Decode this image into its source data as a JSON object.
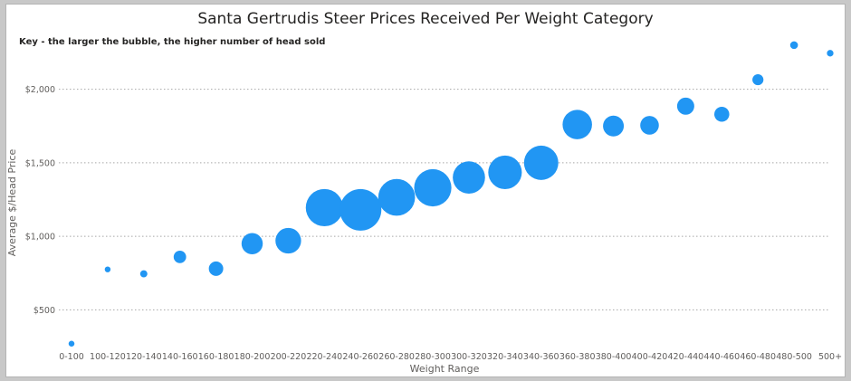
{
  "chart_data": {
    "type": "bubble",
    "title": "Santa Gertrudis Steer Prices Received Per Weight Category",
    "subtitle": "Key - the larger the bubble, the higher number of head sold",
    "xlabel": "Weight Range",
    "ylabel": "Average $/Head Price",
    "ylim": [
      250,
      2330
    ],
    "yticks": [
      500,
      1000,
      1500,
      2000
    ],
    "ytick_labels": [
      "$500",
      "$1,000",
      "$1,500",
      "$2,000"
    ],
    "grid": true,
    "color": "#2196F3",
    "categories": [
      "0-100",
      "100-120",
      "120-140",
      "140-160",
      "160-180",
      "180-200",
      "200-220",
      "220-240",
      "240-260",
      "260-280",
      "280-300",
      "300-320",
      "320-340",
      "340-360",
      "360-380",
      "380-400",
      "400-420",
      "420-440",
      "440-460",
      "460-480",
      "480-500",
      "500+"
    ],
    "values": [
      270,
      775,
      745,
      860,
      780,
      950,
      970,
      1195,
      1180,
      1265,
      1330,
      1400,
      1435,
      1500,
      1760,
      1750,
      1755,
      1885,
      1830,
      2065,
      2300,
      2245
    ],
    "bubble_sizes": [
      2,
      1.5,
      3,
      9,
      12,
      26,
      38,
      80,
      100,
      78,
      80,
      60,
      65,
      68,
      50,
      25,
      20,
      17,
      13,
      7,
      3.5,
      2.5
    ]
  }
}
